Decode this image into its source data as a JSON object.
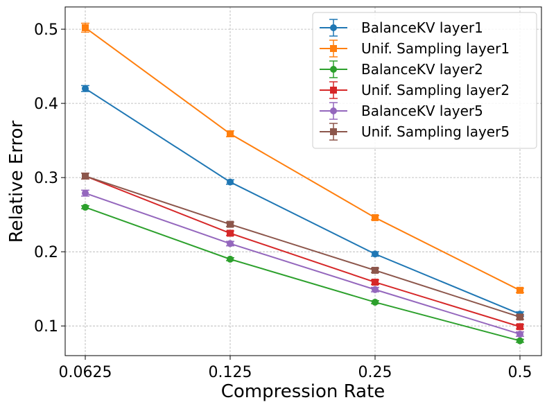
{
  "chart_data": {
    "type": "line",
    "x": [
      0.0625,
      0.125,
      0.25,
      0.5
    ],
    "x_tick_labels": [
      "0.0625",
      "0.125",
      "0.25",
      "0.5"
    ],
    "x_scale": "log2",
    "xlabel": "Compression Rate",
    "ylabel": "Relative Error",
    "ylim": [
      0.06,
      0.53
    ],
    "y_ticks": [
      0.1,
      0.2,
      0.3,
      0.4,
      0.5
    ],
    "y_tick_labels": [
      "0.1",
      "0.2",
      "0.3",
      "0.4",
      "0.5"
    ],
    "grid": true,
    "legend_position": "top-right",
    "series": [
      {
        "name": "BalanceKV layer1",
        "color": "#1f77b4",
        "marker": "circle",
        "values": [
          0.42,
          0.294,
          0.197,
          0.116
        ],
        "errors": [
          0.004,
          0.003,
          0.003,
          0.003
        ]
      },
      {
        "name": "Unif. Sampling layer1",
        "color": "#ff7f0e",
        "marker": "square",
        "values": [
          0.502,
          0.359,
          0.246,
          0.148
        ],
        "errors": [
          0.006,
          0.004,
          0.003,
          0.003
        ]
      },
      {
        "name": "BalanceKV layer2",
        "color": "#2ca02c",
        "marker": "circle",
        "values": [
          0.26,
          0.19,
          0.132,
          0.08
        ],
        "errors": [
          0.002,
          0.002,
          0.002,
          0.002
        ]
      },
      {
        "name": "Unif. Sampling layer2",
        "color": "#d62728",
        "marker": "square",
        "values": [
          0.302,
          0.225,
          0.159,
          0.099
        ],
        "errors": [
          0.004,
          0.003,
          0.003,
          0.003
        ]
      },
      {
        "name": "BalanceKV layer5",
        "color": "#9467bd",
        "marker": "circle",
        "values": [
          0.279,
          0.211,
          0.149,
          0.089
        ],
        "errors": [
          0.004,
          0.003,
          0.003,
          0.003
        ]
      },
      {
        "name": "Unif. Sampling layer5",
        "color": "#8c564b",
        "marker": "square",
        "values": [
          0.302,
          0.237,
          0.175,
          0.112
        ],
        "errors": [
          0.004,
          0.003,
          0.003,
          0.003
        ]
      }
    ]
  }
}
